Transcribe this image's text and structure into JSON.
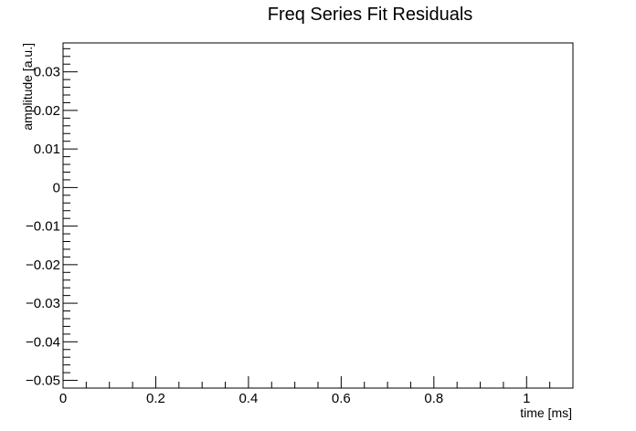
{
  "chart_data": {
    "type": "scatter",
    "title": "Freq Series Fit Residuals",
    "xlabel": "time [ms]",
    "ylabel": "amplitude [a.u.]",
    "xlim": [
      0,
      1.1
    ],
    "ylim": [
      -0.052,
      0.0375
    ],
    "x_ticks": [
      {
        "value": 0,
        "label": "0"
      },
      {
        "value": 0.2,
        "label": "0.2"
      },
      {
        "value": 0.4,
        "label": "0.4"
      },
      {
        "value": 0.6,
        "label": "0.6"
      },
      {
        "value": 0.8,
        "label": "0.8"
      },
      {
        "value": 1,
        "label": "1"
      }
    ],
    "y_ticks": [
      {
        "value": 0.03,
        "label": "0.03"
      },
      {
        "value": 0.02,
        "label": "0.02"
      },
      {
        "value": 0.01,
        "label": "0.01"
      },
      {
        "value": 0,
        "label": "0"
      },
      {
        "value": -0.01,
        "label": "−0.01"
      },
      {
        "value": -0.02,
        "label": "−0.02"
      },
      {
        "value": -0.03,
        "label": "−0.03"
      },
      {
        "value": -0.04,
        "label": "−0.04"
      },
      {
        "value": -0.05,
        "label": "−0.05"
      }
    ],
    "x_minor_step": 0.05,
    "y_minor_step": 0.002,
    "series": [],
    "grid": false,
    "legend": "none",
    "colors": {
      "axis": "#000000",
      "background": "#ffffff"
    }
  }
}
